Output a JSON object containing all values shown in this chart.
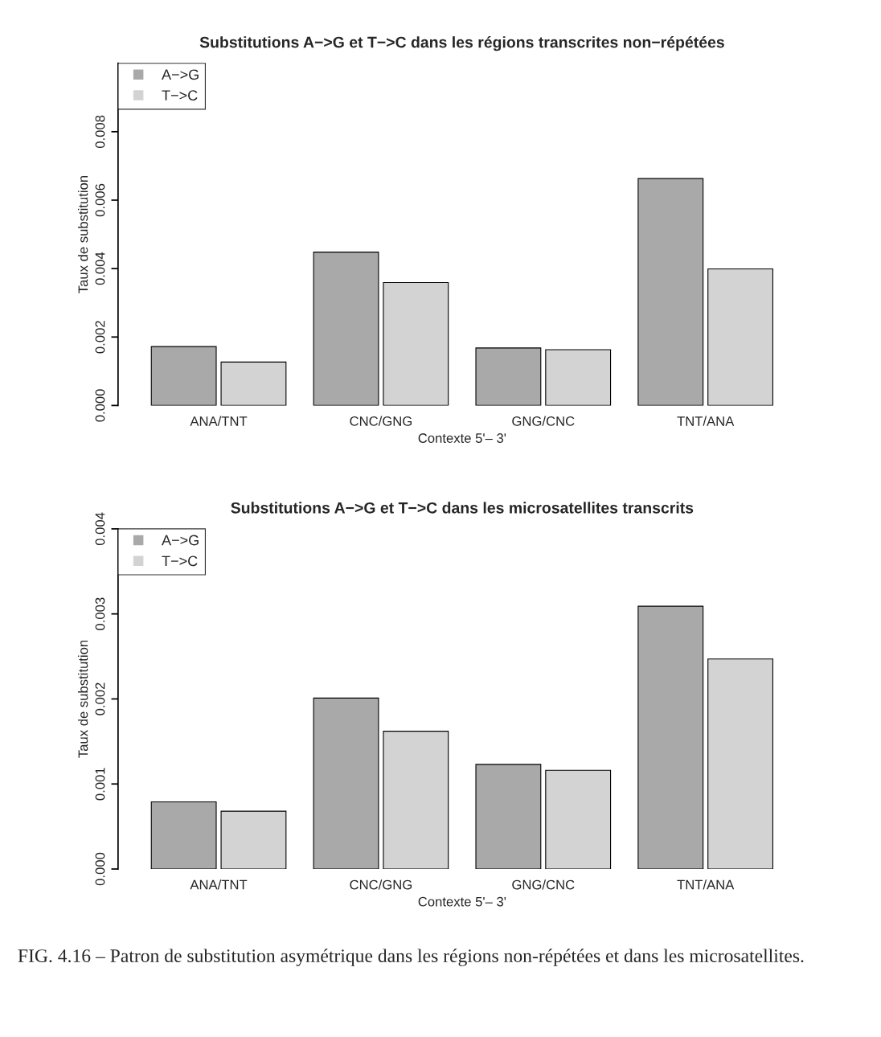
{
  "chart_data": [
    {
      "type": "bar",
      "title": "Substitutions A−>G et T−>C dans les régions transcrites non−répétées",
      "xlabel": "Contexte 5'– 3'",
      "ylabel": "Taux de substitution",
      "categories": [
        "ANA/TNT",
        "CNC/GNG",
        "GNG/CNC",
        "TNT/ANA"
      ],
      "series": [
        {
          "name": "A−>G",
          "color": "#a9a9a9",
          "values": [
            0.00172,
            0.00448,
            0.00168,
            0.00663
          ]
        },
        {
          "name": "T−>C",
          "color": "#d3d3d3",
          "values": [
            0.00127,
            0.00359,
            0.00163,
            0.00399
          ]
        }
      ],
      "ylim": [
        0,
        0.01
      ],
      "yticks": [
        {
          "value": 0,
          "label": "0.000"
        },
        0.002,
        0.004,
        0.006,
        0.008
      ],
      "legend": "top left"
    },
    {
      "type": "bar",
      "title": "Substitutions A−>G et T−>C dans les microsatellites transcrits",
      "xlabel": "Contexte 5'– 3'",
      "ylabel": "Taux de substitution",
      "categories": [
        "ANA/TNT",
        "CNC/GNG",
        "GNG/CNC",
        "TNT/ANA"
      ],
      "series": [
        {
          "name": "A−>G",
          "color": "#a9a9a9",
          "values": [
            0.00079,
            0.00201,
            0.00123,
            0.00309
          ]
        },
        {
          "name": "T−>C",
          "color": "#d3d3d3",
          "values": [
            0.00068,
            0.00162,
            0.00116,
            0.00247
          ]
        }
      ],
      "ylim": [
        0,
        0.004
      ],
      "yticks": [
        {
          "value": 0,
          "label": "0.000"
        },
        0.001,
        0.002,
        0.003,
        0.004
      ],
      "legend": "top left",
      "annotations": [
        "FIG. 4.16 – Patron de substitution asymétrique dans les régions non-répétées et dans les microsatellites."
      ]
    }
  ]
}
